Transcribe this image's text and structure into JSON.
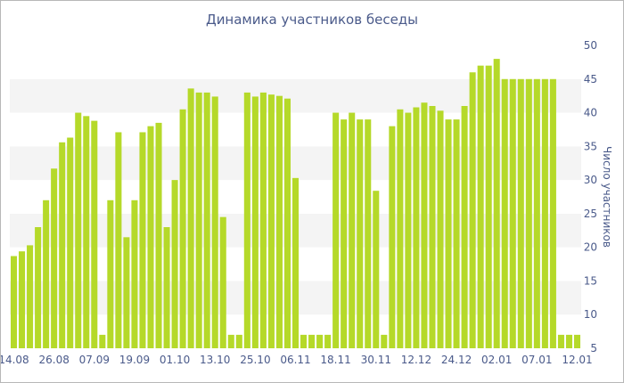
{
  "chart_data": {
    "type": "bar",
    "title": "Динамика участников беседы",
    "xlabel": "",
    "ylabel": "Число участников",
    "ylim": [
      5,
      50
    ],
    "yticks": [
      5,
      10,
      15,
      20,
      25,
      30,
      35,
      40,
      45,
      50
    ],
    "y_axis_side": "right",
    "grid": "horizontal bands",
    "bar_color": "#b5d929",
    "x_tick_labels": [
      "14.08",
      "26.08",
      "07.09",
      "19.09",
      "01.10",
      "13.10",
      "25.10",
      "06.11",
      "18.11",
      "30.11",
      "12.12",
      "24.12",
      "02.01",
      "07.01",
      "12.01"
    ],
    "x_tick_positions": [
      0,
      5,
      10,
      15,
      20,
      25,
      30,
      35,
      40,
      45,
      50,
      55,
      60,
      65,
      70
    ],
    "values": [
      18.7,
      19.4,
      20.3,
      23,
      27,
      31.7,
      35.6,
      36.3,
      40,
      39.5,
      38.8,
      7,
      27,
      37.1,
      21.5,
      27,
      37.1,
      38,
      38.5,
      23,
      30,
      40.5,
      43.6,
      43,
      43,
      42.4,
      24.5,
      7,
      7,
      43,
      42.4,
      43,
      42.7,
      42.5,
      42.1,
      30.3,
      7,
      7,
      7,
      7,
      40,
      39,
      40,
      39,
      39,
      28.4,
      7,
      38,
      40.5,
      40,
      40.8,
      41.5,
      41,
      40.3,
      39,
      39,
      41,
      46,
      47,
      47,
      48,
      45,
      45,
      45,
      45,
      45,
      45,
      45,
      7,
      7,
      7
    ]
  }
}
